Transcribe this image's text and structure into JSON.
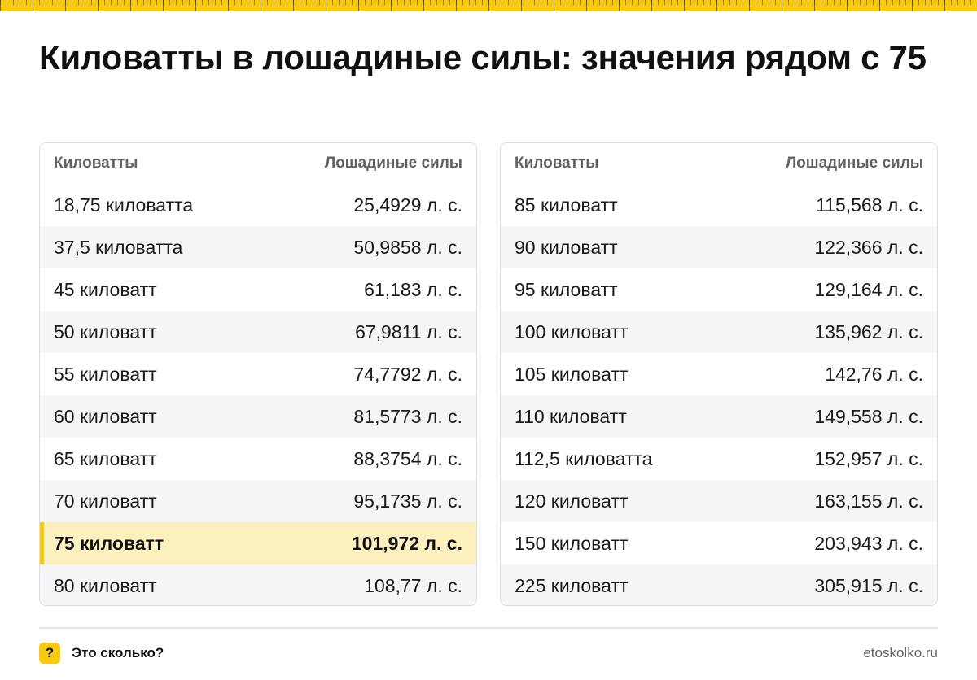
{
  "title": "Киловатты в лошадиные силы: значения рядом с 75",
  "left_table": {
    "header": {
      "col1": "Киловатты",
      "col2": "Лошадиные силы"
    },
    "rows": [
      {
        "kw": "18,75 киловатта",
        "hp": "25,4929 л. с."
      },
      {
        "kw": "37,5 киловатта",
        "hp": "50,9858 л. с."
      },
      {
        "kw": "45 киловатт",
        "hp": "61,183 л. с."
      },
      {
        "kw": "50 киловатт",
        "hp": "67,9811 л. с."
      },
      {
        "kw": "55 киловатт",
        "hp": "74,7792 л. с."
      },
      {
        "kw": "60 киловатт",
        "hp": "81,5773 л. с."
      },
      {
        "kw": "65 киловатт",
        "hp": "88,3754 л. с."
      },
      {
        "kw": "70 киловатт",
        "hp": "95,1735 л. с."
      },
      {
        "kw": "75 киловатт",
        "hp": "101,972 л. с.",
        "highlight": true
      },
      {
        "kw": "80 киловатт",
        "hp": "108,77 л. с."
      }
    ]
  },
  "right_table": {
    "header": {
      "col1": "Киловатты",
      "col2": "Лошадиные силы"
    },
    "rows": [
      {
        "kw": "85 киловатт",
        "hp": "115,568 л. с."
      },
      {
        "kw": "90 киловатт",
        "hp": "122,366 л. с."
      },
      {
        "kw": "95 киловатт",
        "hp": "129,164 л. с."
      },
      {
        "kw": "100 киловатт",
        "hp": "135,962 л. с."
      },
      {
        "kw": "105 киловатт",
        "hp": "142,76 л. с."
      },
      {
        "kw": "110 киловатт",
        "hp": "149,558 л. с."
      },
      {
        "kw": "112,5 киловатта",
        "hp": "152,957 л. с."
      },
      {
        "kw": "120 киловатт",
        "hp": "163,155 л. с."
      },
      {
        "kw": "150 киловатт",
        "hp": "203,943 л. с."
      },
      {
        "kw": "225 киловатт",
        "hp": "305,915 л. с."
      }
    ]
  },
  "footer": {
    "brand_icon": "?",
    "brand_name": "Это сколько?",
    "site": "etoskolko.ru"
  },
  "colors": {
    "accent": "#f7c911",
    "highlight_row": "#fdf0bf",
    "alt_row": "#f4f5f7"
  }
}
